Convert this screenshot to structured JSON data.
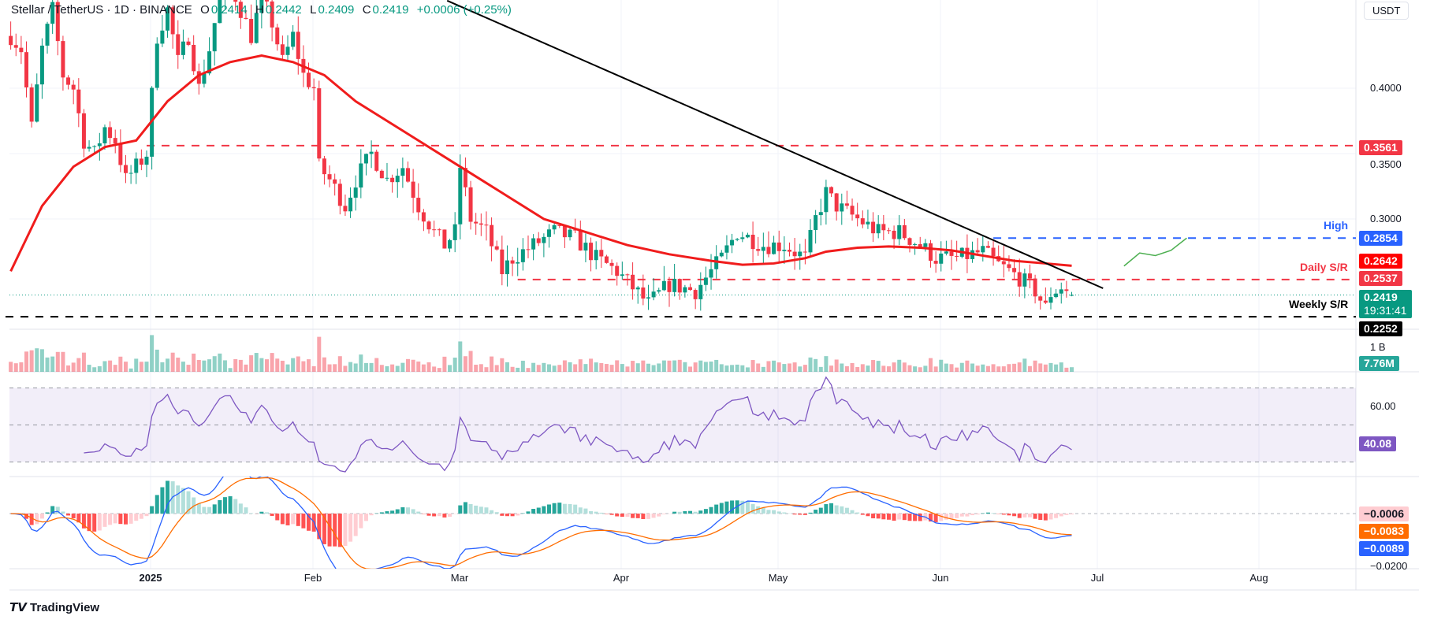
{
  "header": {
    "symbol": "Stellar / TetherUS · 1D · BINANCE",
    "o_label": "O",
    "open": "0.2414",
    "h_label": "H",
    "high": "0.2442",
    "l_label": "L",
    "low": "0.2409",
    "c_label": "C",
    "close": "0.2419",
    "change": "+0.0006 (+0.25%)"
  },
  "currency_button": "USDT",
  "price_axis": {
    "ticks": [
      "0.4000",
      "0.3500",
      "0.3000"
    ]
  },
  "volume_axis": {
    "scale_label": "1 B"
  },
  "rsi_axis": {
    "ticks": [
      "60.00"
    ]
  },
  "macd_axis": {
    "ticks": [
      "−0.0200"
    ]
  },
  "badges": {
    "resistance_top": {
      "text": "0.3561",
      "value": 0.3561,
      "color": "#f23645"
    },
    "high": {
      "text": "0.2854",
      "value": 0.2854,
      "color": "#2962ff"
    },
    "ma50": {
      "text": "0.2642",
      "value": 0.2642,
      "color": "#ff0000"
    },
    "daily_sr": {
      "text": "0.2537",
      "value": 0.2537,
      "color": "#f23645"
    },
    "last_price": {
      "text": "0.2419",
      "value": 0.2419,
      "color": "#089981",
      "countdown": "19:31:41"
    },
    "weekly_sr": {
      "text": "0.2252",
      "value": 0.2252,
      "color": "#000000"
    },
    "volume": {
      "text": "7.76M",
      "color": "#26a69a"
    },
    "rsi": {
      "text": "40.08",
      "value": 40.08,
      "color": "#7e57c2"
    },
    "macd_hist": {
      "text": "−0.0006",
      "value": -0.0006,
      "color": "#ffcdd2"
    },
    "macd_signal": {
      "text": "−0.0083",
      "value": -0.0083,
      "color": "#ff6d00"
    },
    "macd_line": {
      "text": "−0.0089",
      "value": -0.0089,
      "color": "#2962ff"
    }
  },
  "annotations": {
    "high_label": "High",
    "daily_label": "Daily S/R",
    "weekly_label": "Weekly S/R"
  },
  "time_axis": [
    "2025",
    "Feb",
    "Mar",
    "Apr",
    "May",
    "Jun",
    "Jul",
    "Aug"
  ],
  "footer": {
    "brand": "TradingView"
  },
  "chart_data": {
    "type": "candlestick",
    "title": "Stellar / TetherUS · 1D · BINANCE",
    "x_unit": "days from 2025-01-01",
    "xlim": [
      -27,
      230
    ],
    "ylim": [
      0.215,
      0.467
    ],
    "close_keypoints": [
      [
        -26,
        0.44
      ],
      [
        -24,
        0.43
      ],
      [
        -22,
        0.37
      ],
      [
        -20,
        0.43
      ],
      [
        -18,
        0.46
      ],
      [
        -16,
        0.41
      ],
      [
        -14,
        0.4
      ],
      [
        -12,
        0.36
      ],
      [
        -10,
        0.35
      ],
      [
        -8,
        0.37
      ],
      [
        -6,
        0.36
      ],
      [
        -4,
        0.33
      ],
      [
        -2,
        0.34
      ],
      [
        0,
        0.35
      ],
      [
        2,
        0.44
      ],
      [
        4,
        0.46
      ],
      [
        6,
        0.42
      ],
      [
        8,
        0.44
      ],
      [
        10,
        0.4
      ],
      [
        12,
        0.43
      ],
      [
        14,
        0.47
      ],
      [
        16,
        0.48
      ],
      [
        18,
        0.46
      ],
      [
        20,
        0.44
      ],
      [
        22,
        0.47
      ],
      [
        24,
        0.45
      ],
      [
        26,
        0.42
      ],
      [
        28,
        0.44
      ],
      [
        30,
        0.41
      ],
      [
        32,
        0.4
      ],
      [
        33,
        0.34
      ],
      [
        35,
        0.33
      ],
      [
        38,
        0.31
      ],
      [
        40,
        0.33
      ],
      [
        43,
        0.35
      ],
      [
        46,
        0.33
      ],
      [
        49,
        0.34
      ],
      [
        52,
        0.31
      ],
      [
        55,
        0.29
      ],
      [
        57,
        0.28
      ],
      [
        59,
        0.29
      ],
      [
        60,
        0.34
      ],
      [
        62,
        0.3
      ],
      [
        65,
        0.29
      ],
      [
        68,
        0.26
      ],
      [
        70,
        0.27
      ],
      [
        74,
        0.28
      ],
      [
        78,
        0.29
      ],
      [
        82,
        0.285
      ],
      [
        86,
        0.27
      ],
      [
        90,
        0.26
      ],
      [
        96,
        0.235
      ],
      [
        100,
        0.25
      ],
      [
        105,
        0.245
      ],
      [
        110,
        0.27
      ],
      [
        113,
        0.29
      ],
      [
        118,
        0.28
      ],
      [
        122,
        0.28
      ],
      [
        126,
        0.27
      ],
      [
        128,
        0.3
      ],
      [
        130,
        0.32
      ],
      [
        132,
        0.31
      ],
      [
        136,
        0.3
      ],
      [
        140,
        0.29
      ],
      [
        144,
        0.29
      ],
      [
        148,
        0.28
      ],
      [
        151,
        0.27
      ],
      [
        155,
        0.27
      ],
      [
        160,
        0.275
      ],
      [
        163,
        0.265
      ],
      [
        167,
        0.255
      ],
      [
        170,
        0.245
      ],
      [
        172,
        0.232
      ],
      [
        173,
        0.243
      ],
      [
        175,
        0.248
      ],
      [
        177,
        0.2419
      ]
    ],
    "ma50_keypoints": [
      [
        -26,
        0.26
      ],
      [
        -20,
        0.31
      ],
      [
        -14,
        0.34
      ],
      [
        -8,
        0.355
      ],
      [
        -2,
        0.36
      ],
      [
        4,
        0.39
      ],
      [
        10,
        0.41
      ],
      [
        16,
        0.42
      ],
      [
        22,
        0.425
      ],
      [
        28,
        0.42
      ],
      [
        34,
        0.41
      ],
      [
        40,
        0.39
      ],
      [
        46,
        0.375
      ],
      [
        52,
        0.36
      ],
      [
        58,
        0.345
      ],
      [
        64,
        0.33
      ],
      [
        70,
        0.315
      ],
      [
        76,
        0.3
      ],
      [
        84,
        0.29
      ],
      [
        92,
        0.28
      ],
      [
        100,
        0.273
      ],
      [
        108,
        0.268
      ],
      [
        114,
        0.265
      ],
      [
        120,
        0.266
      ],
      [
        126,
        0.27
      ],
      [
        130,
        0.275
      ],
      [
        136,
        0.278
      ],
      [
        142,
        0.279
      ],
      [
        148,
        0.278
      ],
      [
        154,
        0.276
      ],
      [
        160,
        0.272
      ],
      [
        166,
        0.268
      ],
      [
        172,
        0.266
      ],
      [
        177,
        0.2642
      ]
    ],
    "last_candle": {
      "open": 0.2414,
      "high": 0.2442,
      "low": 0.2409,
      "close": 0.2419
    },
    "levels": [
      {
        "name": "resistance",
        "value": 0.3561,
        "from": 0,
        "color": "#f23645",
        "style": "dashed"
      },
      {
        "name": "high",
        "value": 0.2854,
        "from": 162,
        "color": "#2962ff",
        "style": "dashed"
      },
      {
        "name": "daily_sr",
        "value": 0.2537,
        "from": 71,
        "color": "#f23645",
        "style": "dashed"
      },
      {
        "name": "weekly_sr",
        "value": 0.2252,
        "from": -27,
        "color": "#000000",
        "style": "dashed"
      }
    ],
    "trendline": [
      [
        57.5,
        0.467
      ],
      [
        183,
        0.247
      ]
    ],
    "forecast_path": [
      [
        187,
        0.264
      ],
      [
        190,
        0.274
      ],
      [
        193,
        0.272
      ],
      [
        196,
        0.276
      ],
      [
        199,
        0.2854
      ]
    ],
    "volume_last": "7.76M",
    "rsi": {
      "period": 14,
      "last": 40.08,
      "bands": [
        70,
        50,
        30
      ]
    },
    "macd": {
      "fast": 12,
      "slow": 26,
      "signal": 9,
      "histogram": -0.0006,
      "signal_value": -0.0083,
      "macd_value": -0.0089
    }
  }
}
